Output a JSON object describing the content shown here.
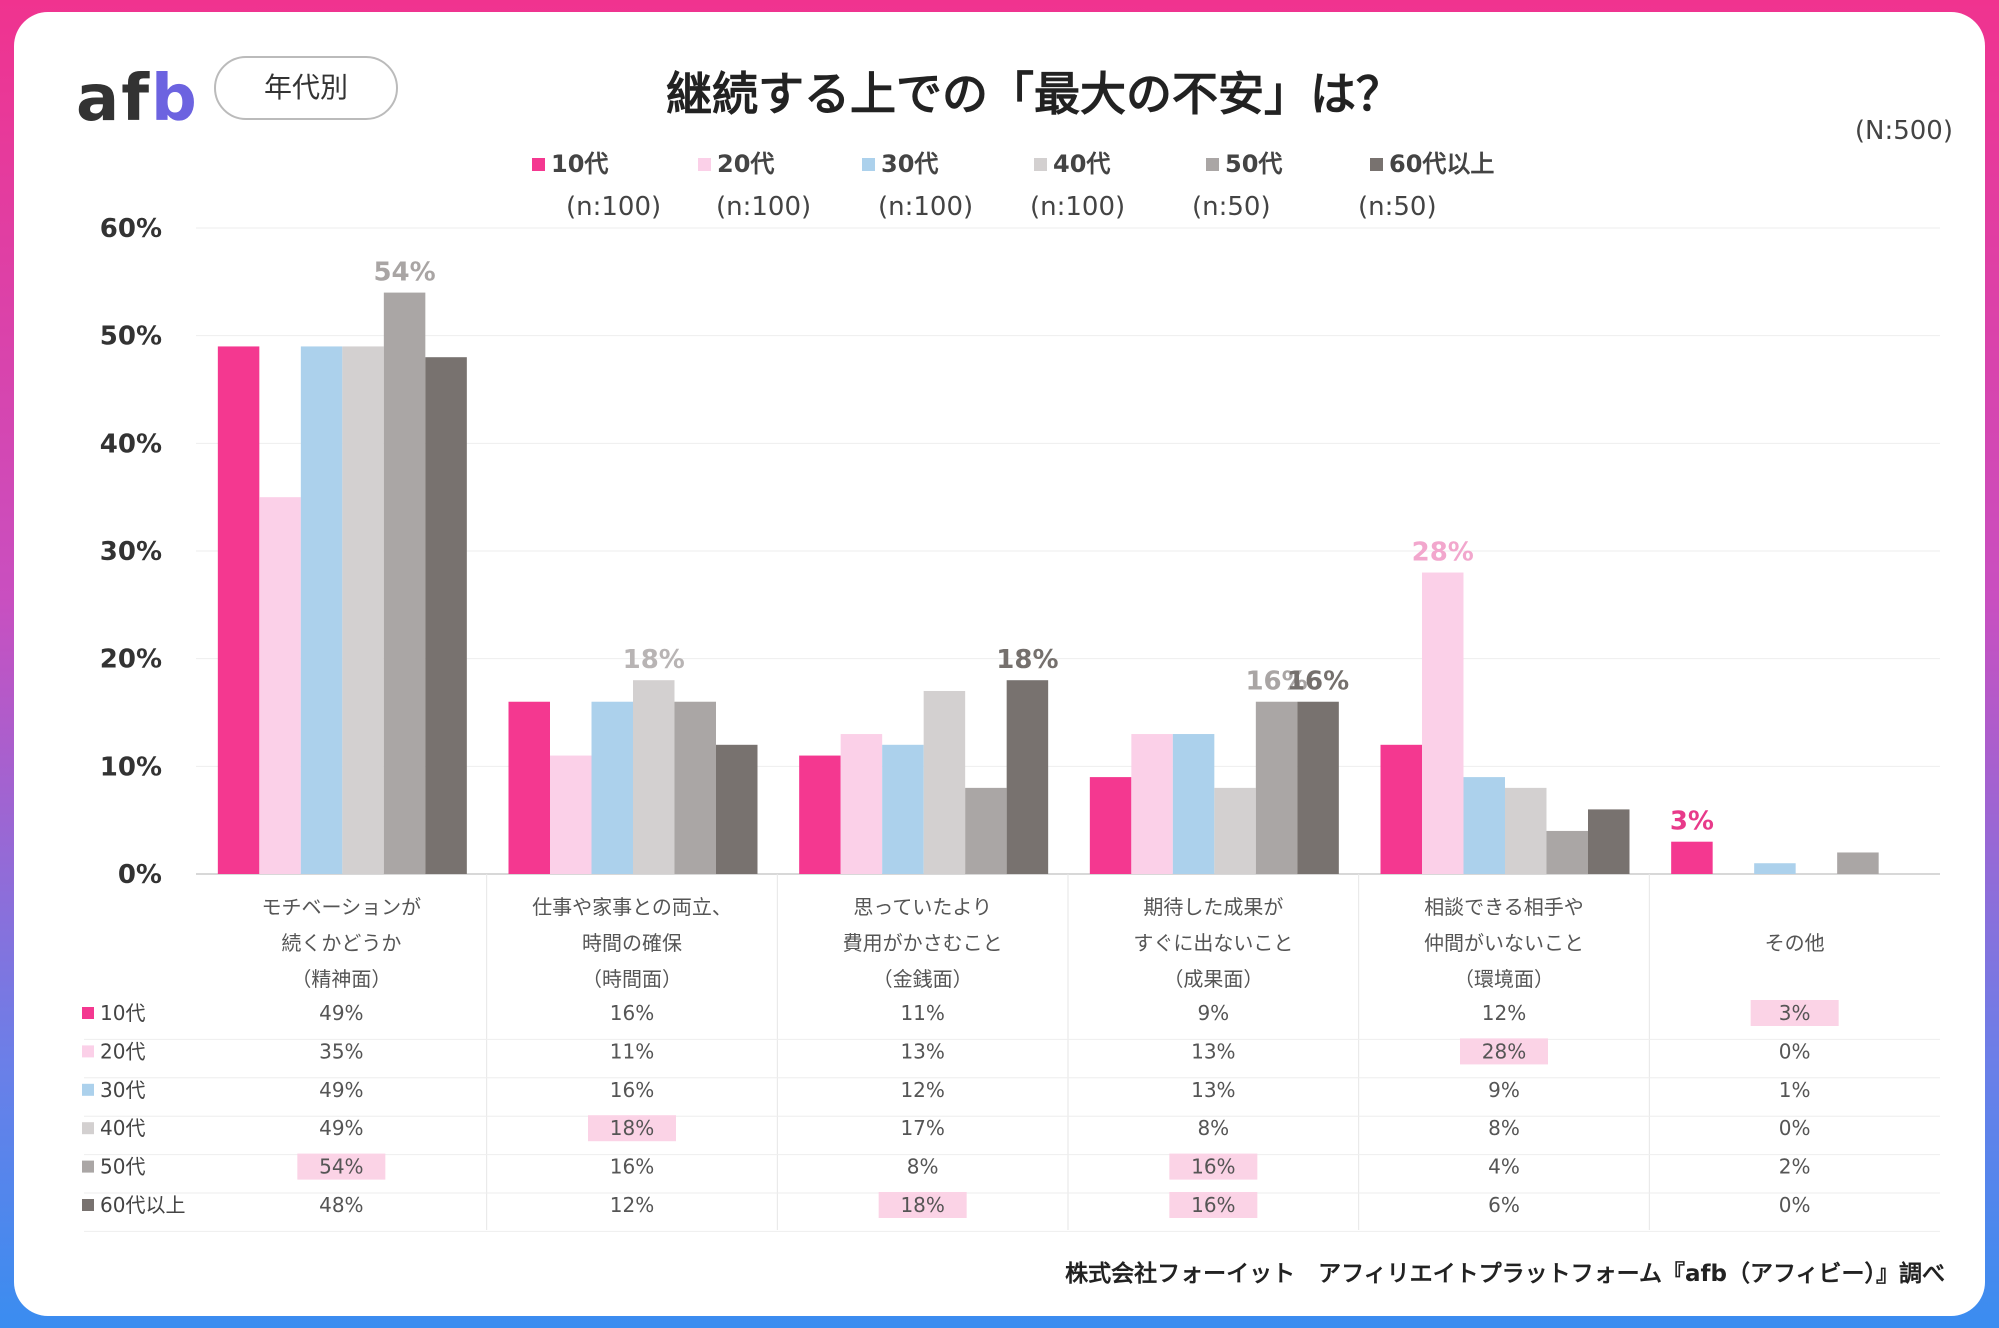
{
  "header": {
    "logo_a": "af",
    "logo_b": "b",
    "tag": "年代別",
    "title": "継続する上での「最大の不安」は？",
    "total_n": "(N:500)"
  },
  "footer": "株式会社フォーイット　アフィリエイトプラットフォーム『afb（アフィビー）』調べ",
  "colors": {
    "10s": "#f43890",
    "20s": "#fbd0e8",
    "30s": "#acd1ec",
    "40s": "#d3d0d0",
    "50s": "#aaa6a5",
    "60s": "#78726f",
    "highlight_bg": "#fbd3e6",
    "grid": "#eeeeee"
  },
  "legend": [
    {
      "label": "10代",
      "n": "(n:100)"
    },
    {
      "label": "20代",
      "n": "(n:100)"
    },
    {
      "label": "30代",
      "n": "(n:100)"
    },
    {
      "label": "40代",
      "n": "(n:100)"
    },
    {
      "label": "50代",
      "n": "(n:50)"
    },
    {
      "label": "60代以上",
      "n": "(n:50)"
    }
  ],
  "chart_data": {
    "type": "bar",
    "ylim": [
      0,
      60
    ],
    "yticks": [
      "0%",
      "10%",
      "20%",
      "30%",
      "40%",
      "50%",
      "60%"
    ],
    "categories": [
      [
        "モチベーションが",
        "続くかどうか",
        "（精神面）"
      ],
      [
        "仕事や家事との両立、",
        "時間の確保",
        "（時間面）"
      ],
      [
        "思っていたより",
        "費用がかさむこと",
        "（金銭面）"
      ],
      [
        "期待した成果が",
        "すぐに出ないこと",
        "（成果面）"
      ],
      [
        "相談できる相手や",
        "仲間がいないこと",
        "（環境面）"
      ],
      [
        "その他"
      ]
    ],
    "series": [
      {
        "name": "10代",
        "values": [
          49,
          16,
          11,
          9,
          12,
          3
        ]
      },
      {
        "name": "20代",
        "values": [
          35,
          11,
          13,
          13,
          28,
          0
        ]
      },
      {
        "name": "30代",
        "values": [
          49,
          16,
          12,
          13,
          9,
          1
        ]
      },
      {
        "name": "40代",
        "values": [
          49,
          18,
          17,
          8,
          8,
          0
        ]
      },
      {
        "name": "50代",
        "values": [
          54,
          16,
          8,
          16,
          4,
          2
        ]
      },
      {
        "name": "60代以上",
        "values": [
          48,
          12,
          18,
          16,
          6,
          0
        ]
      }
    ],
    "bar_annotations": [
      {
        "category": 0,
        "series": 4,
        "text": "54%"
      },
      {
        "category": 1,
        "series": 3,
        "text": "18%"
      },
      {
        "category": 2,
        "series": 5,
        "text": "18%"
      },
      {
        "category": 3,
        "series": 4,
        "text": "16%"
      },
      {
        "category": 3,
        "series": 5,
        "text": "16%"
      },
      {
        "category": 4,
        "series": 1,
        "text": "28%"
      },
      {
        "category": 5,
        "series": 0,
        "text": "3%"
      }
    ],
    "table": {
      "rows": [
        {
          "label": "10代",
          "cells": [
            "49%",
            "16%",
            "11%",
            "9%",
            "12%",
            "3%"
          ],
          "hl": [
            5
          ]
        },
        {
          "label": "20代",
          "cells": [
            "35%",
            "11%",
            "13%",
            "13%",
            "28%",
            "0%"
          ],
          "hl": [
            4
          ]
        },
        {
          "label": "30代",
          "cells": [
            "49%",
            "16%",
            "12%",
            "13%",
            "9%",
            "1%"
          ],
          "hl": []
        },
        {
          "label": "40代",
          "cells": [
            "49%",
            "18%",
            "17%",
            "8%",
            "8%",
            "0%"
          ],
          "hl": [
            1
          ]
        },
        {
          "label": "50代",
          "cells": [
            "54%",
            "16%",
            "8%",
            "16%",
            "4%",
            "2%"
          ],
          "hl": [
            0,
            3
          ]
        },
        {
          "label": "60代以上",
          "cells": [
            "48%",
            "12%",
            "18%",
            "16%",
            "6%",
            "0%"
          ],
          "hl": [
            2,
            3
          ]
        }
      ]
    },
    "grid": true
  }
}
